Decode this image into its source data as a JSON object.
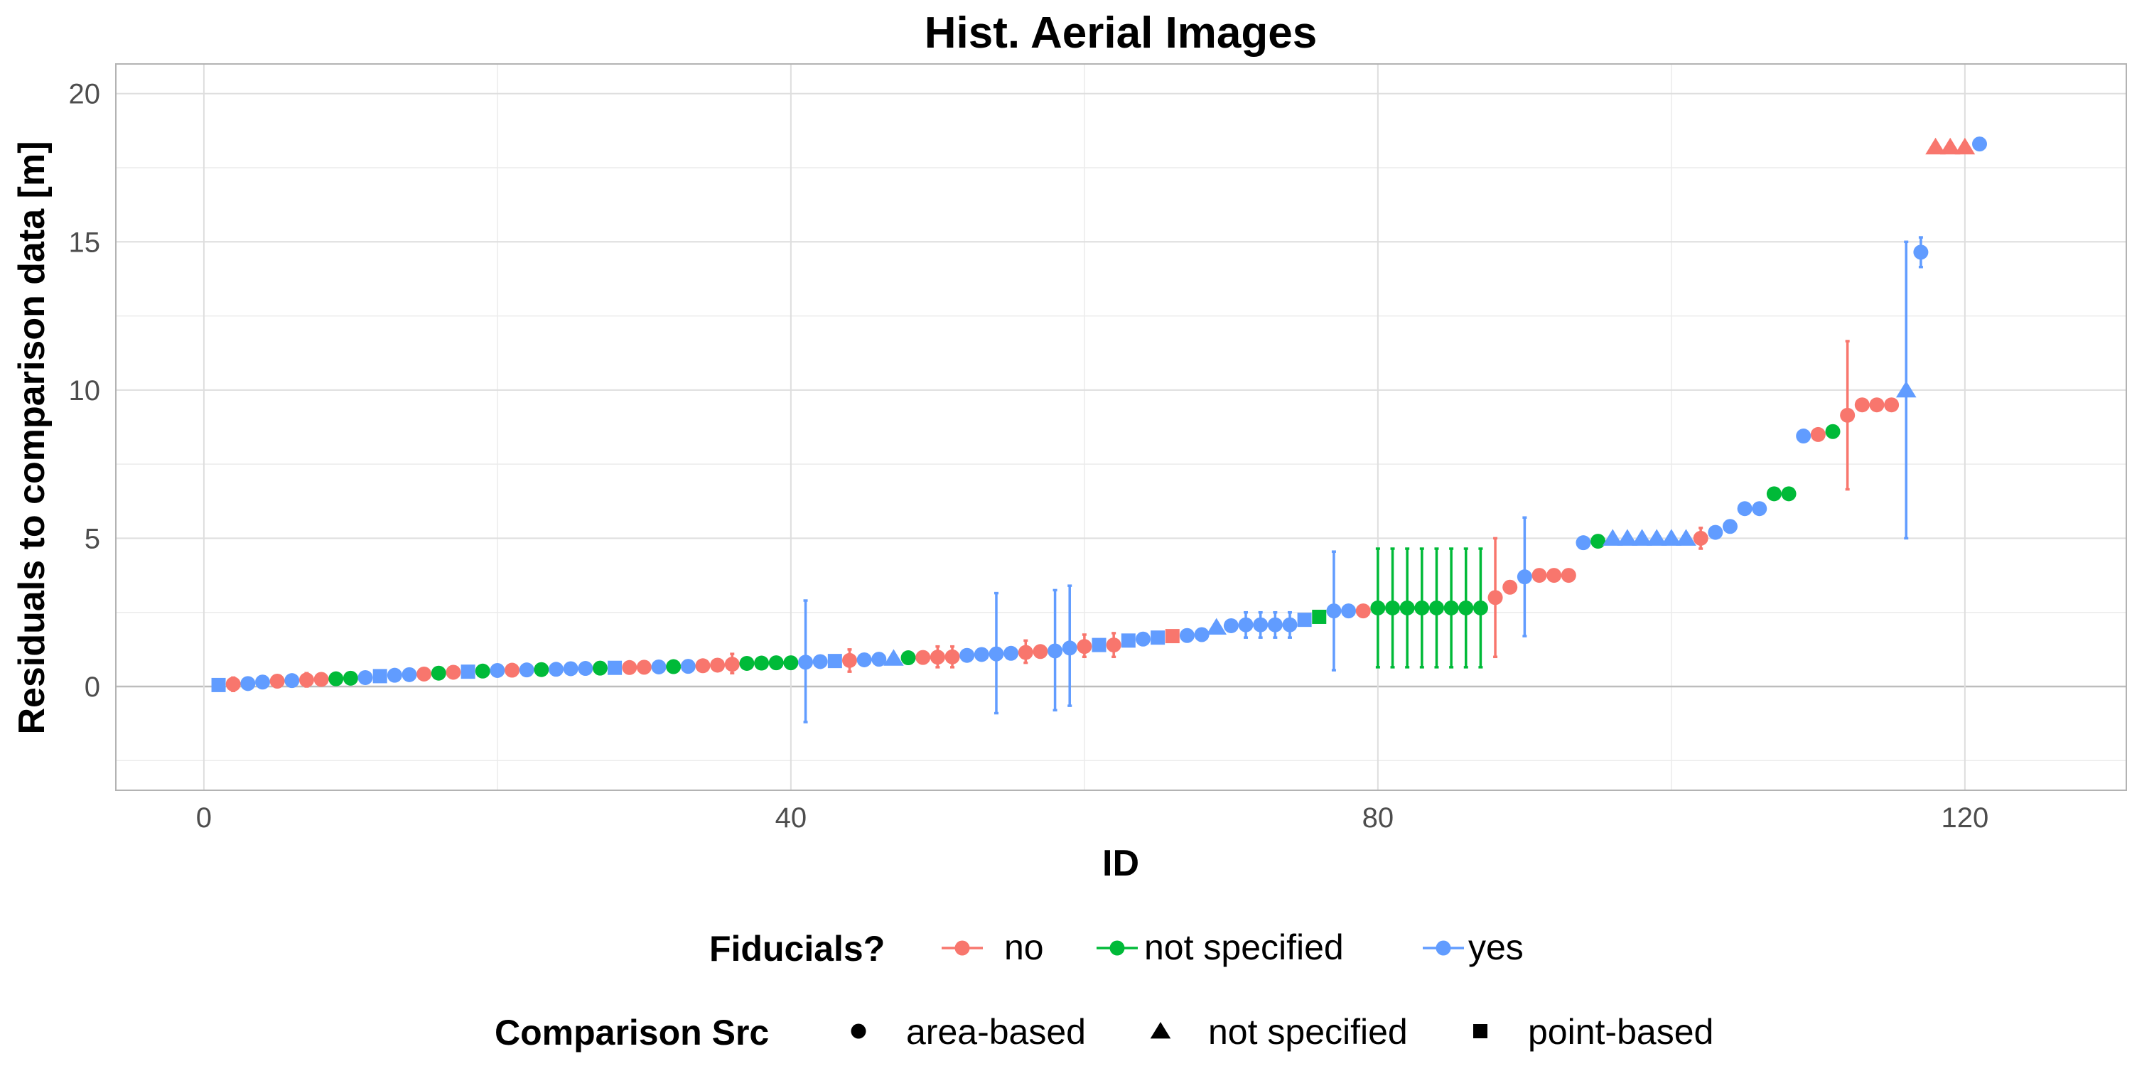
{
  "chart_data": {
    "type": "scatter",
    "title": "Hist. Aerial Images",
    "xlabel": "ID",
    "ylabel": "Residuals to comparison data [m]",
    "xlim": [
      -6,
      131
    ],
    "ylim": [
      -3.5,
      21
    ],
    "xticks": [
      "0",
      "40",
      "80",
      "120"
    ],
    "yticks": [
      "0",
      "5",
      "10",
      "15",
      "20"
    ],
    "grid": true,
    "legend_position": "bottom",
    "legend": {
      "color": {
        "title": "Fiducials?",
        "entries": [
          {
            "label": "no",
            "color": "#F8766D"
          },
          {
            "label": "not specified",
            "color": "#00BA38"
          },
          {
            "label": "yes",
            "color": "#619CFF"
          }
        ]
      },
      "shape": {
        "title": "Comparison Src",
        "entries": [
          {
            "label": "area-based",
            "shape": "circle"
          },
          {
            "label": "not specified",
            "shape": "triangle"
          },
          {
            "label": "point-based",
            "shape": "square"
          }
        ]
      }
    },
    "points": [
      {
        "x": 1,
        "y": 0.05,
        "fid": "yes",
        "src": "point-based"
      },
      {
        "x": 2,
        "y": 0.08,
        "fid": "no",
        "src": "area-based",
        "ymin": -0.15,
        "ymax": 0.3
      },
      {
        "x": 3,
        "y": 0.1,
        "fid": "yes",
        "src": "area-based"
      },
      {
        "x": 4,
        "y": 0.15,
        "fid": "yes",
        "src": "area-based"
      },
      {
        "x": 5,
        "y": 0.18,
        "fid": "no",
        "src": "area-based"
      },
      {
        "x": 6,
        "y": 0.2,
        "fid": "yes",
        "src": "area-based"
      },
      {
        "x": 7,
        "y": 0.22,
        "fid": "no",
        "src": "area-based",
        "ymin": 0.0,
        "ymax": 0.45
      },
      {
        "x": 8,
        "y": 0.24,
        "fid": "no",
        "src": "area-based"
      },
      {
        "x": 9,
        "y": 0.26,
        "fid": "not specified",
        "src": "area-based"
      },
      {
        "x": 10,
        "y": 0.28,
        "fid": "not specified",
        "src": "area-based"
      },
      {
        "x": 11,
        "y": 0.3,
        "fid": "yes",
        "src": "area-based"
      },
      {
        "x": 12,
        "y": 0.35,
        "fid": "yes",
        "src": "point-based"
      },
      {
        "x": 13,
        "y": 0.38,
        "fid": "yes",
        "src": "area-based"
      },
      {
        "x": 14,
        "y": 0.4,
        "fid": "yes",
        "src": "area-based"
      },
      {
        "x": 15,
        "y": 0.42,
        "fid": "no",
        "src": "area-based"
      },
      {
        "x": 16,
        "y": 0.45,
        "fid": "not specified",
        "src": "area-based"
      },
      {
        "x": 17,
        "y": 0.48,
        "fid": "no",
        "src": "area-based"
      },
      {
        "x": 18,
        "y": 0.5,
        "fid": "yes",
        "src": "point-based"
      },
      {
        "x": 19,
        "y": 0.52,
        "fid": "not specified",
        "src": "area-based"
      },
      {
        "x": 20,
        "y": 0.54,
        "fid": "yes",
        "src": "area-based"
      },
      {
        "x": 21,
        "y": 0.55,
        "fid": "no",
        "src": "area-based"
      },
      {
        "x": 22,
        "y": 0.56,
        "fid": "yes",
        "src": "area-based"
      },
      {
        "x": 23,
        "y": 0.57,
        "fid": "not specified",
        "src": "area-based"
      },
      {
        "x": 24,
        "y": 0.58,
        "fid": "yes",
        "src": "area-based"
      },
      {
        "x": 25,
        "y": 0.6,
        "fid": "yes",
        "src": "area-based"
      },
      {
        "x": 26,
        "y": 0.61,
        "fid": "yes",
        "src": "area-based"
      },
      {
        "x": 27,
        "y": 0.62,
        "fid": "not specified",
        "src": "area-based"
      },
      {
        "x": 28,
        "y": 0.63,
        "fid": "yes",
        "src": "point-based"
      },
      {
        "x": 29,
        "y": 0.64,
        "fid": "no",
        "src": "area-based"
      },
      {
        "x": 30,
        "y": 0.65,
        "fid": "no",
        "src": "area-based"
      },
      {
        "x": 31,
        "y": 0.66,
        "fid": "yes",
        "src": "area-based"
      },
      {
        "x": 32,
        "y": 0.67,
        "fid": "not specified",
        "src": "area-based"
      },
      {
        "x": 33,
        "y": 0.68,
        "fid": "yes",
        "src": "area-based"
      },
      {
        "x": 34,
        "y": 0.7,
        "fid": "no",
        "src": "area-based"
      },
      {
        "x": 35,
        "y": 0.72,
        "fid": "no",
        "src": "area-based"
      },
      {
        "x": 36,
        "y": 0.75,
        "fid": "no",
        "src": "area-based",
        "ymin": 0.45,
        "ymax": 1.1
      },
      {
        "x": 37,
        "y": 0.78,
        "fid": "not specified",
        "src": "area-based"
      },
      {
        "x": 38,
        "y": 0.79,
        "fid": "not specified",
        "src": "area-based"
      },
      {
        "x": 39,
        "y": 0.8,
        "fid": "not specified",
        "src": "area-based"
      },
      {
        "x": 40,
        "y": 0.8,
        "fid": "not specified",
        "src": "area-based"
      },
      {
        "x": 41,
        "y": 0.82,
        "fid": "yes",
        "src": "area-based",
        "ymin": -1.2,
        "ymax": 2.9
      },
      {
        "x": 42,
        "y": 0.84,
        "fid": "yes",
        "src": "area-based"
      },
      {
        "x": 43,
        "y": 0.86,
        "fid": "yes",
        "src": "point-based"
      },
      {
        "x": 44,
        "y": 0.88,
        "fid": "no",
        "src": "area-based",
        "ymin": 0.5,
        "ymax": 1.25
      },
      {
        "x": 45,
        "y": 0.9,
        "fid": "yes",
        "src": "area-based"
      },
      {
        "x": 46,
        "y": 0.92,
        "fid": "yes",
        "src": "area-based"
      },
      {
        "x": 47,
        "y": 0.95,
        "fid": "yes",
        "src": "not specified"
      },
      {
        "x": 48,
        "y": 0.97,
        "fid": "not specified",
        "src": "area-based"
      },
      {
        "x": 49,
        "y": 0.98,
        "fid": "no",
        "src": "area-based"
      },
      {
        "x": 50,
        "y": 0.99,
        "fid": "no",
        "src": "area-based",
        "ymin": 0.65,
        "ymax": 1.35
      },
      {
        "x": 51,
        "y": 1.0,
        "fid": "no",
        "src": "area-based",
        "ymin": 0.65,
        "ymax": 1.35
      },
      {
        "x": 52,
        "y": 1.05,
        "fid": "yes",
        "src": "area-based"
      },
      {
        "x": 53,
        "y": 1.08,
        "fid": "yes",
        "src": "area-based"
      },
      {
        "x": 54,
        "y": 1.1,
        "fid": "yes",
        "src": "area-based",
        "ymin": -0.9,
        "ymax": 3.15
      },
      {
        "x": 55,
        "y": 1.12,
        "fid": "yes",
        "src": "area-based"
      },
      {
        "x": 56,
        "y": 1.15,
        "fid": "no",
        "src": "area-based",
        "ymin": 0.8,
        "ymax": 1.55
      },
      {
        "x": 57,
        "y": 1.18,
        "fid": "no",
        "src": "area-based"
      },
      {
        "x": 58,
        "y": 1.2,
        "fid": "yes",
        "src": "area-based",
        "ymin": -0.8,
        "ymax": 3.25
      },
      {
        "x": 59,
        "y": 1.3,
        "fid": "yes",
        "src": "area-based",
        "ymin": -0.65,
        "ymax": 3.4
      },
      {
        "x": 60,
        "y": 1.35,
        "fid": "no",
        "src": "area-based",
        "ymin": 1.0,
        "ymax": 1.75
      },
      {
        "x": 61,
        "y": 1.4,
        "fid": "yes",
        "src": "point-based"
      },
      {
        "x": 62,
        "y": 1.4,
        "fid": "no",
        "src": "area-based",
        "ymin": 1.0,
        "ymax": 1.8
      },
      {
        "x": 63,
        "y": 1.55,
        "fid": "yes",
        "src": "point-based"
      },
      {
        "x": 64,
        "y": 1.6,
        "fid": "yes",
        "src": "area-based"
      },
      {
        "x": 65,
        "y": 1.65,
        "fid": "yes",
        "src": "point-based"
      },
      {
        "x": 66,
        "y": 1.7,
        "fid": "no",
        "src": "point-based"
      },
      {
        "x": 67,
        "y": 1.72,
        "fid": "yes",
        "src": "area-based"
      },
      {
        "x": 68,
        "y": 1.75,
        "fid": "yes",
        "src": "area-based"
      },
      {
        "x": 69,
        "y": 2.0,
        "fid": "yes",
        "src": "not specified"
      },
      {
        "x": 70,
        "y": 2.05,
        "fid": "yes",
        "src": "area-based"
      },
      {
        "x": 71,
        "y": 2.08,
        "fid": "yes",
        "src": "area-based",
        "ymin": 1.65,
        "ymax": 2.5
      },
      {
        "x": 72,
        "y": 2.08,
        "fid": "yes",
        "src": "area-based",
        "ymin": 1.65,
        "ymax": 2.5
      },
      {
        "x": 73,
        "y": 2.08,
        "fid": "yes",
        "src": "area-based",
        "ymin": 1.65,
        "ymax": 2.5
      },
      {
        "x": 74,
        "y": 2.08,
        "fid": "yes",
        "src": "area-based",
        "ymin": 1.65,
        "ymax": 2.5
      },
      {
        "x": 75,
        "y": 2.25,
        "fid": "yes",
        "src": "point-based"
      },
      {
        "x": 76,
        "y": 2.35,
        "fid": "not specified",
        "src": "point-based"
      },
      {
        "x": 77,
        "y": 2.55,
        "fid": "yes",
        "src": "area-based",
        "ymin": 0.55,
        "ymax": 4.55
      },
      {
        "x": 78,
        "y": 2.55,
        "fid": "yes",
        "src": "area-based"
      },
      {
        "x": 79,
        "y": 2.55,
        "fid": "no",
        "src": "area-based"
      },
      {
        "x": 80,
        "y": 2.65,
        "fid": "not specified",
        "src": "area-based",
        "ymin": 0.65,
        "ymax": 4.65
      },
      {
        "x": 81,
        "y": 2.65,
        "fid": "not specified",
        "src": "area-based",
        "ymin": 0.65,
        "ymax": 4.65
      },
      {
        "x": 82,
        "y": 2.65,
        "fid": "not specified",
        "src": "area-based",
        "ymin": 0.65,
        "ymax": 4.65
      },
      {
        "x": 83,
        "y": 2.65,
        "fid": "not specified",
        "src": "area-based",
        "ymin": 0.65,
        "ymax": 4.65
      },
      {
        "x": 84,
        "y": 2.65,
        "fid": "not specified",
        "src": "area-based",
        "ymin": 0.65,
        "ymax": 4.65
      },
      {
        "x": 85,
        "y": 2.65,
        "fid": "not specified",
        "src": "area-based",
        "ymin": 0.65,
        "ymax": 4.65
      },
      {
        "x": 86,
        "y": 2.65,
        "fid": "not specified",
        "src": "area-based",
        "ymin": 0.65,
        "ymax": 4.65
      },
      {
        "x": 87,
        "y": 2.65,
        "fid": "not specified",
        "src": "area-based",
        "ymin": 0.65,
        "ymax": 4.65
      },
      {
        "x": 88,
        "y": 3.0,
        "fid": "no",
        "src": "area-based",
        "ymin": 1.0,
        "ymax": 5.0
      },
      {
        "x": 89,
        "y": 3.35,
        "fid": "no",
        "src": "area-based"
      },
      {
        "x": 90,
        "y": 3.7,
        "fid": "yes",
        "src": "area-based",
        "ymin": 1.7,
        "ymax": 5.7
      },
      {
        "x": 91,
        "y": 3.75,
        "fid": "no",
        "src": "area-based"
      },
      {
        "x": 92,
        "y": 3.75,
        "fid": "no",
        "src": "area-based"
      },
      {
        "x": 93,
        "y": 3.75,
        "fid": "no",
        "src": "area-based"
      },
      {
        "x": 94,
        "y": 4.85,
        "fid": "yes",
        "src": "area-based"
      },
      {
        "x": 95,
        "y": 4.9,
        "fid": "not specified",
        "src": "area-based"
      },
      {
        "x": 96,
        "y": 5.0,
        "fid": "yes",
        "src": "not specified"
      },
      {
        "x": 97,
        "y": 5.0,
        "fid": "yes",
        "src": "not specified"
      },
      {
        "x": 98,
        "y": 5.0,
        "fid": "yes",
        "src": "not specified"
      },
      {
        "x": 99,
        "y": 5.0,
        "fid": "yes",
        "src": "not specified"
      },
      {
        "x": 100,
        "y": 5.0,
        "fid": "yes",
        "src": "not specified"
      },
      {
        "x": 101,
        "y": 5.0,
        "fid": "yes",
        "src": "not specified"
      },
      {
        "x": 102,
        "y": 5.0,
        "fid": "no",
        "src": "area-based",
        "ymin": 4.65,
        "ymax": 5.35
      },
      {
        "x": 103,
        "y": 5.2,
        "fid": "yes",
        "src": "area-based"
      },
      {
        "x": 104,
        "y": 5.4,
        "fid": "yes",
        "src": "area-based"
      },
      {
        "x": 105,
        "y": 6.0,
        "fid": "yes",
        "src": "area-based"
      },
      {
        "x": 106,
        "y": 6.0,
        "fid": "yes",
        "src": "area-based"
      },
      {
        "x": 107,
        "y": 6.5,
        "fid": "not specified",
        "src": "area-based"
      },
      {
        "x": 108,
        "y": 6.5,
        "fid": "not specified",
        "src": "area-based"
      },
      {
        "x": 109,
        "y": 8.45,
        "fid": "yes",
        "src": "area-based"
      },
      {
        "x": 110,
        "y": 8.5,
        "fid": "no",
        "src": "area-based"
      },
      {
        "x": 111,
        "y": 8.6,
        "fid": "not specified",
        "src": "area-based"
      },
      {
        "x": 112,
        "y": 9.15,
        "fid": "no",
        "src": "area-based",
        "ymin": 6.65,
        "ymax": 11.65
      },
      {
        "x": 113,
        "y": 9.5,
        "fid": "no",
        "src": "area-based"
      },
      {
        "x": 114,
        "y": 9.5,
        "fid": "no",
        "src": "area-based"
      },
      {
        "x": 115,
        "y": 9.5,
        "fid": "no",
        "src": "area-based"
      },
      {
        "x": 116,
        "y": 10.0,
        "fid": "yes",
        "src": "not specified",
        "ymin": 5.0,
        "ymax": 15.0
      },
      {
        "x": 117,
        "y": 14.65,
        "fid": "yes",
        "src": "area-based",
        "ymin": 14.15,
        "ymax": 15.15
      },
      {
        "x": 118,
        "y": 18.2,
        "fid": "no",
        "src": "not specified"
      },
      {
        "x": 119,
        "y": 18.2,
        "fid": "no",
        "src": "not specified"
      },
      {
        "x": 120,
        "y": 18.2,
        "fid": "no",
        "src": "not specified"
      },
      {
        "x": 121,
        "y": 18.3,
        "fid": "yes",
        "src": "area-based"
      }
    ]
  }
}
